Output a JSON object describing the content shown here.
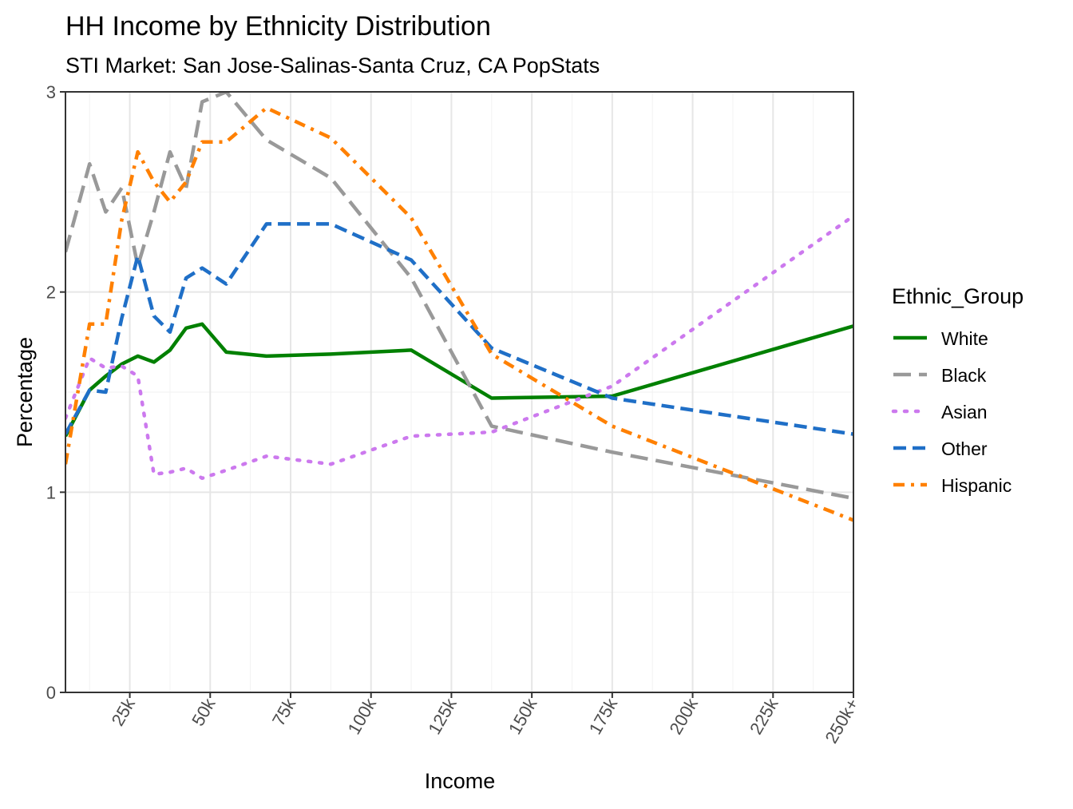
{
  "chart_data": {
    "type": "line",
    "title": "HH Income by Ethnicity Distribution",
    "subtitle": "STI Market: San Jose-Salinas-Santa Cruz, CA PopStats",
    "xlabel": "Income",
    "ylabel": "Percentage",
    "xlim": [
      5000,
      250000
    ],
    "ylim": [
      0,
      3
    ],
    "x_ticks": [
      25000,
      50000,
      75000,
      100000,
      125000,
      150000,
      175000,
      200000,
      225000,
      250000
    ],
    "x_tick_labels": [
      "25k",
      "50k",
      "75k",
      "100k",
      "125k",
      "150k",
      "175k",
      "200k",
      "225k",
      "250k+"
    ],
    "y_ticks": [
      0,
      1,
      2,
      3
    ],
    "y_tick_labels": [
      "0",
      "1",
      "2",
      "3"
    ],
    "grid": true,
    "legend_title": "Ethnic_Group",
    "legend_position": "right",
    "series": [
      {
        "name": "White",
        "color": "#008000",
        "dash": "solid",
        "points": [
          [
            5000,
            1.28
          ],
          [
            12500,
            1.51
          ],
          [
            17500,
            1.58
          ],
          [
            22500,
            1.64
          ],
          [
            27500,
            1.68
          ],
          [
            32500,
            1.65
          ],
          [
            37500,
            1.71
          ],
          [
            42500,
            1.82
          ],
          [
            47500,
            1.84
          ],
          [
            55000,
            1.7
          ],
          [
            67500,
            1.68
          ],
          [
            87500,
            1.69
          ],
          [
            112500,
            1.71
          ],
          [
            137500,
            1.47
          ],
          [
            175000,
            1.48
          ],
          [
            250000,
            1.83
          ]
        ]
      },
      {
        "name": "Black",
        "color": "#999999",
        "dash": "longdash",
        "points": [
          [
            5000,
            2.2
          ],
          [
            12500,
            2.64
          ],
          [
            17500,
            2.4
          ],
          [
            22500,
            2.52
          ],
          [
            27500,
            2.13
          ],
          [
            32500,
            2.4
          ],
          [
            37500,
            2.7
          ],
          [
            42500,
            2.52
          ],
          [
            47500,
            2.95
          ],
          [
            55000,
            3.0
          ],
          [
            67500,
            2.76
          ],
          [
            87500,
            2.57
          ],
          [
            112500,
            2.07
          ],
          [
            137500,
            1.33
          ],
          [
            175000,
            1.2
          ],
          [
            250000,
            0.97
          ]
        ]
      },
      {
        "name": "Asian",
        "color": "#cc79ee",
        "dash": "dotted",
        "points": [
          [
            5000,
            1.37
          ],
          [
            12500,
            1.67
          ],
          [
            17500,
            1.62
          ],
          [
            22500,
            1.63
          ],
          [
            27500,
            1.58
          ],
          [
            32500,
            1.09
          ],
          [
            37500,
            1.1
          ],
          [
            42500,
            1.12
          ],
          [
            47500,
            1.07
          ],
          [
            55000,
            1.11
          ],
          [
            67500,
            1.18
          ],
          [
            87500,
            1.14
          ],
          [
            112500,
            1.28
          ],
          [
            137500,
            1.3
          ],
          [
            175000,
            1.53
          ],
          [
            250000,
            2.38
          ]
        ]
      },
      {
        "name": "Other",
        "color": "#1f6fc7",
        "dash": "dashed",
        "points": [
          [
            5000,
            1.29
          ],
          [
            12500,
            1.51
          ],
          [
            17500,
            1.5
          ],
          [
            22500,
            1.87
          ],
          [
            27500,
            2.18
          ],
          [
            32500,
            1.88
          ],
          [
            37500,
            1.8
          ],
          [
            42500,
            2.07
          ],
          [
            47500,
            2.12
          ],
          [
            55000,
            2.04
          ],
          [
            67500,
            2.34
          ],
          [
            87500,
            2.34
          ],
          [
            112500,
            2.16
          ],
          [
            137500,
            1.72
          ],
          [
            175000,
            1.47
          ],
          [
            250000,
            1.29
          ]
        ]
      },
      {
        "name": "Hispanic",
        "color": "#ff8000",
        "dash": "dotdash",
        "points": [
          [
            5000,
            1.14
          ],
          [
            12500,
            1.84
          ],
          [
            17500,
            1.84
          ],
          [
            22500,
            2.36
          ],
          [
            27500,
            2.7
          ],
          [
            32500,
            2.55
          ],
          [
            37500,
            2.45
          ],
          [
            42500,
            2.55
          ],
          [
            47500,
            2.75
          ],
          [
            55000,
            2.75
          ],
          [
            67500,
            2.92
          ],
          [
            87500,
            2.77
          ],
          [
            112500,
            2.37
          ],
          [
            137500,
            1.69
          ],
          [
            175000,
            1.33
          ],
          [
            250000,
            0.86
          ]
        ]
      }
    ]
  }
}
